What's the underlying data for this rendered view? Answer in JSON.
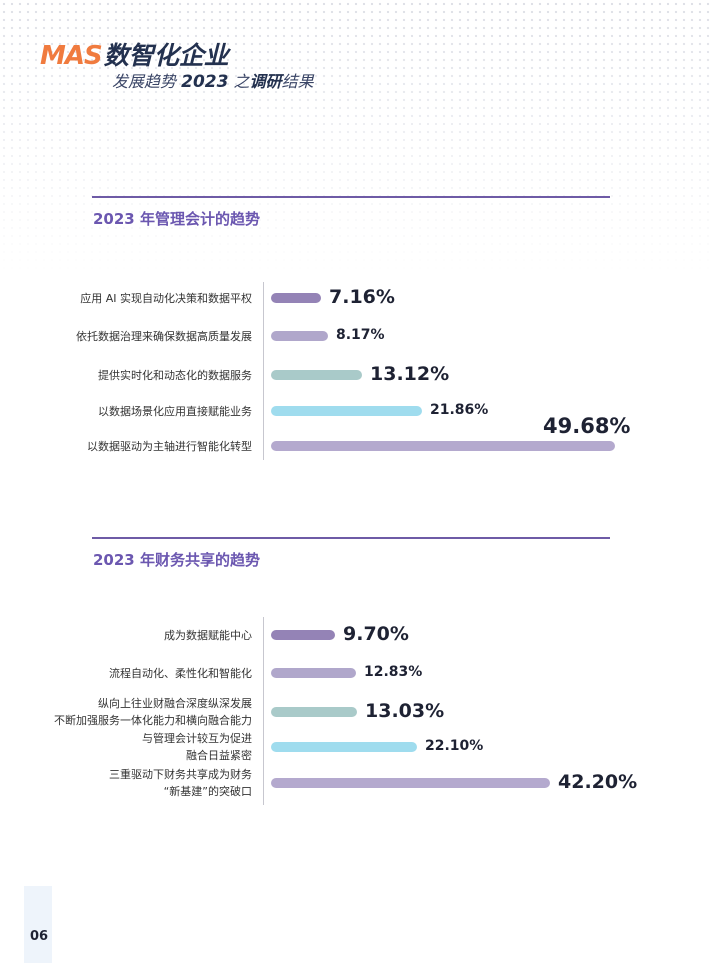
{
  "header": {
    "logo_text": "MAS",
    "title": "数智化企业",
    "subtitle_pre": "发展趋势",
    "subtitle_year": "2023",
    "subtitle_mid": "之",
    "subtitle_strong": "调研",
    "subtitle_post": "结果"
  },
  "sections": [
    {
      "title": "2023 年管理会计的趋势",
      "items": [
        {
          "label": [
            "应用 AI 实现自动化决策和数据平权"
          ],
          "value": "7.16%",
          "percent": 7.16,
          "color": "#9483b6"
        },
        {
          "label": [
            "依托数据治理来确保数据高质量发展"
          ],
          "value": "8.17%",
          "percent": 8.17,
          "color": "#b0a7cb"
        },
        {
          "label": [
            "提供实时化和动态化的数据服务"
          ],
          "value": "13.12%",
          "percent": 13.12,
          "color": "#a9cac9"
        },
        {
          "label": [
            "以数据场景化应用直接赋能业务"
          ],
          "value": "21.86%",
          "percent": 21.86,
          "color": "#9fdcee"
        },
        {
          "label": [
            "以数据驱动为主轴进行智能化转型"
          ],
          "value": "49.68%",
          "percent": 49.68,
          "color": "#b4a9ce"
        }
      ]
    },
    {
      "title": "2023 年财务共享的趋势",
      "items": [
        {
          "label": [
            "成为数据赋能中心"
          ],
          "value": "9.70%",
          "percent": 9.7,
          "color": "#9483b6"
        },
        {
          "label": [
            "流程自动化、柔性化和智能化"
          ],
          "value": "12.83%",
          "percent": 12.83,
          "color": "#b0a7cb"
        },
        {
          "label": [
            "纵向上往业财融合深度纵深发展",
            "不断加强服务一体化能力和横向融合能力"
          ],
          "value": "13.03%",
          "percent": 13.03,
          "color": "#a9cac9"
        },
        {
          "label": [
            "与管理会计较互为促进",
            "融合日益紧密"
          ],
          "value": "22.10%",
          "percent": 22.1,
          "color": "#9fdcee"
        },
        {
          "label": [
            "三重驱动下财务共享成为财务",
            "“新基建”的突破口"
          ],
          "value": "42.20%",
          "percent": 42.2,
          "color": "#b4a9ce"
        }
      ]
    }
  ],
  "page_number": "06"
}
